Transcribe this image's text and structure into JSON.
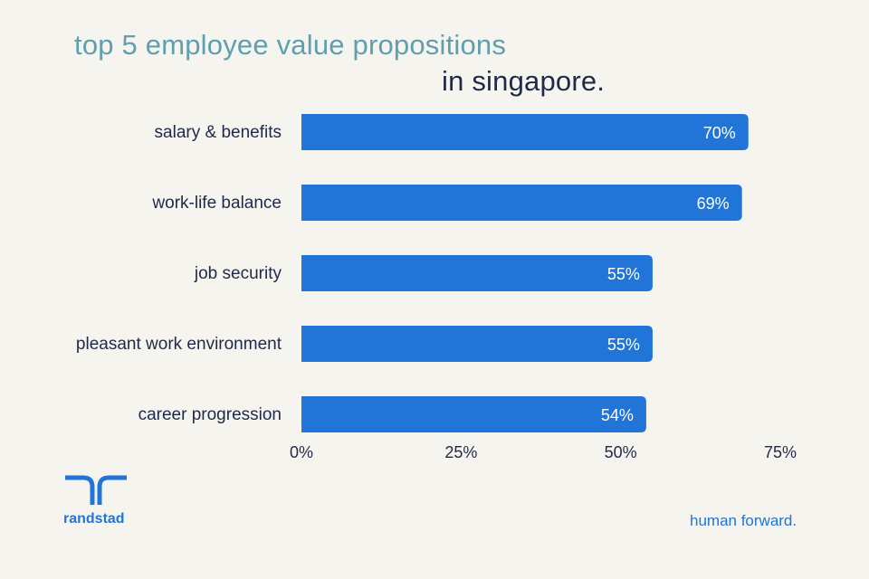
{
  "chart_data": {
    "type": "bar",
    "orientation": "horizontal",
    "title": "top 5 employee value propositions",
    "subtitle": "in singapore.",
    "categories": [
      "salary & benefits",
      "work-life balance",
      "job security",
      "pleasant work environment",
      "career progression"
    ],
    "values": [
      70,
      69,
      55,
      55,
      54
    ],
    "value_labels": [
      "70%",
      "69%",
      "55%",
      "55%",
      "54%"
    ],
    "xlim": [
      0,
      75
    ],
    "xticks": [
      0,
      25,
      50,
      75
    ],
    "xtick_labels": [
      "0%",
      "25%",
      "50%",
      "75%"
    ],
    "grid": false,
    "bar_color": "#2175d9"
  },
  "branding": {
    "logo_name": "randstad-logo-icon",
    "wordmark": "randstad",
    "tagline": "human forward."
  },
  "colors": {
    "background": "#f6f4ef",
    "title": "#5f9fae",
    "subtitle": "#1f2a48",
    "accent": "#2175d9"
  }
}
